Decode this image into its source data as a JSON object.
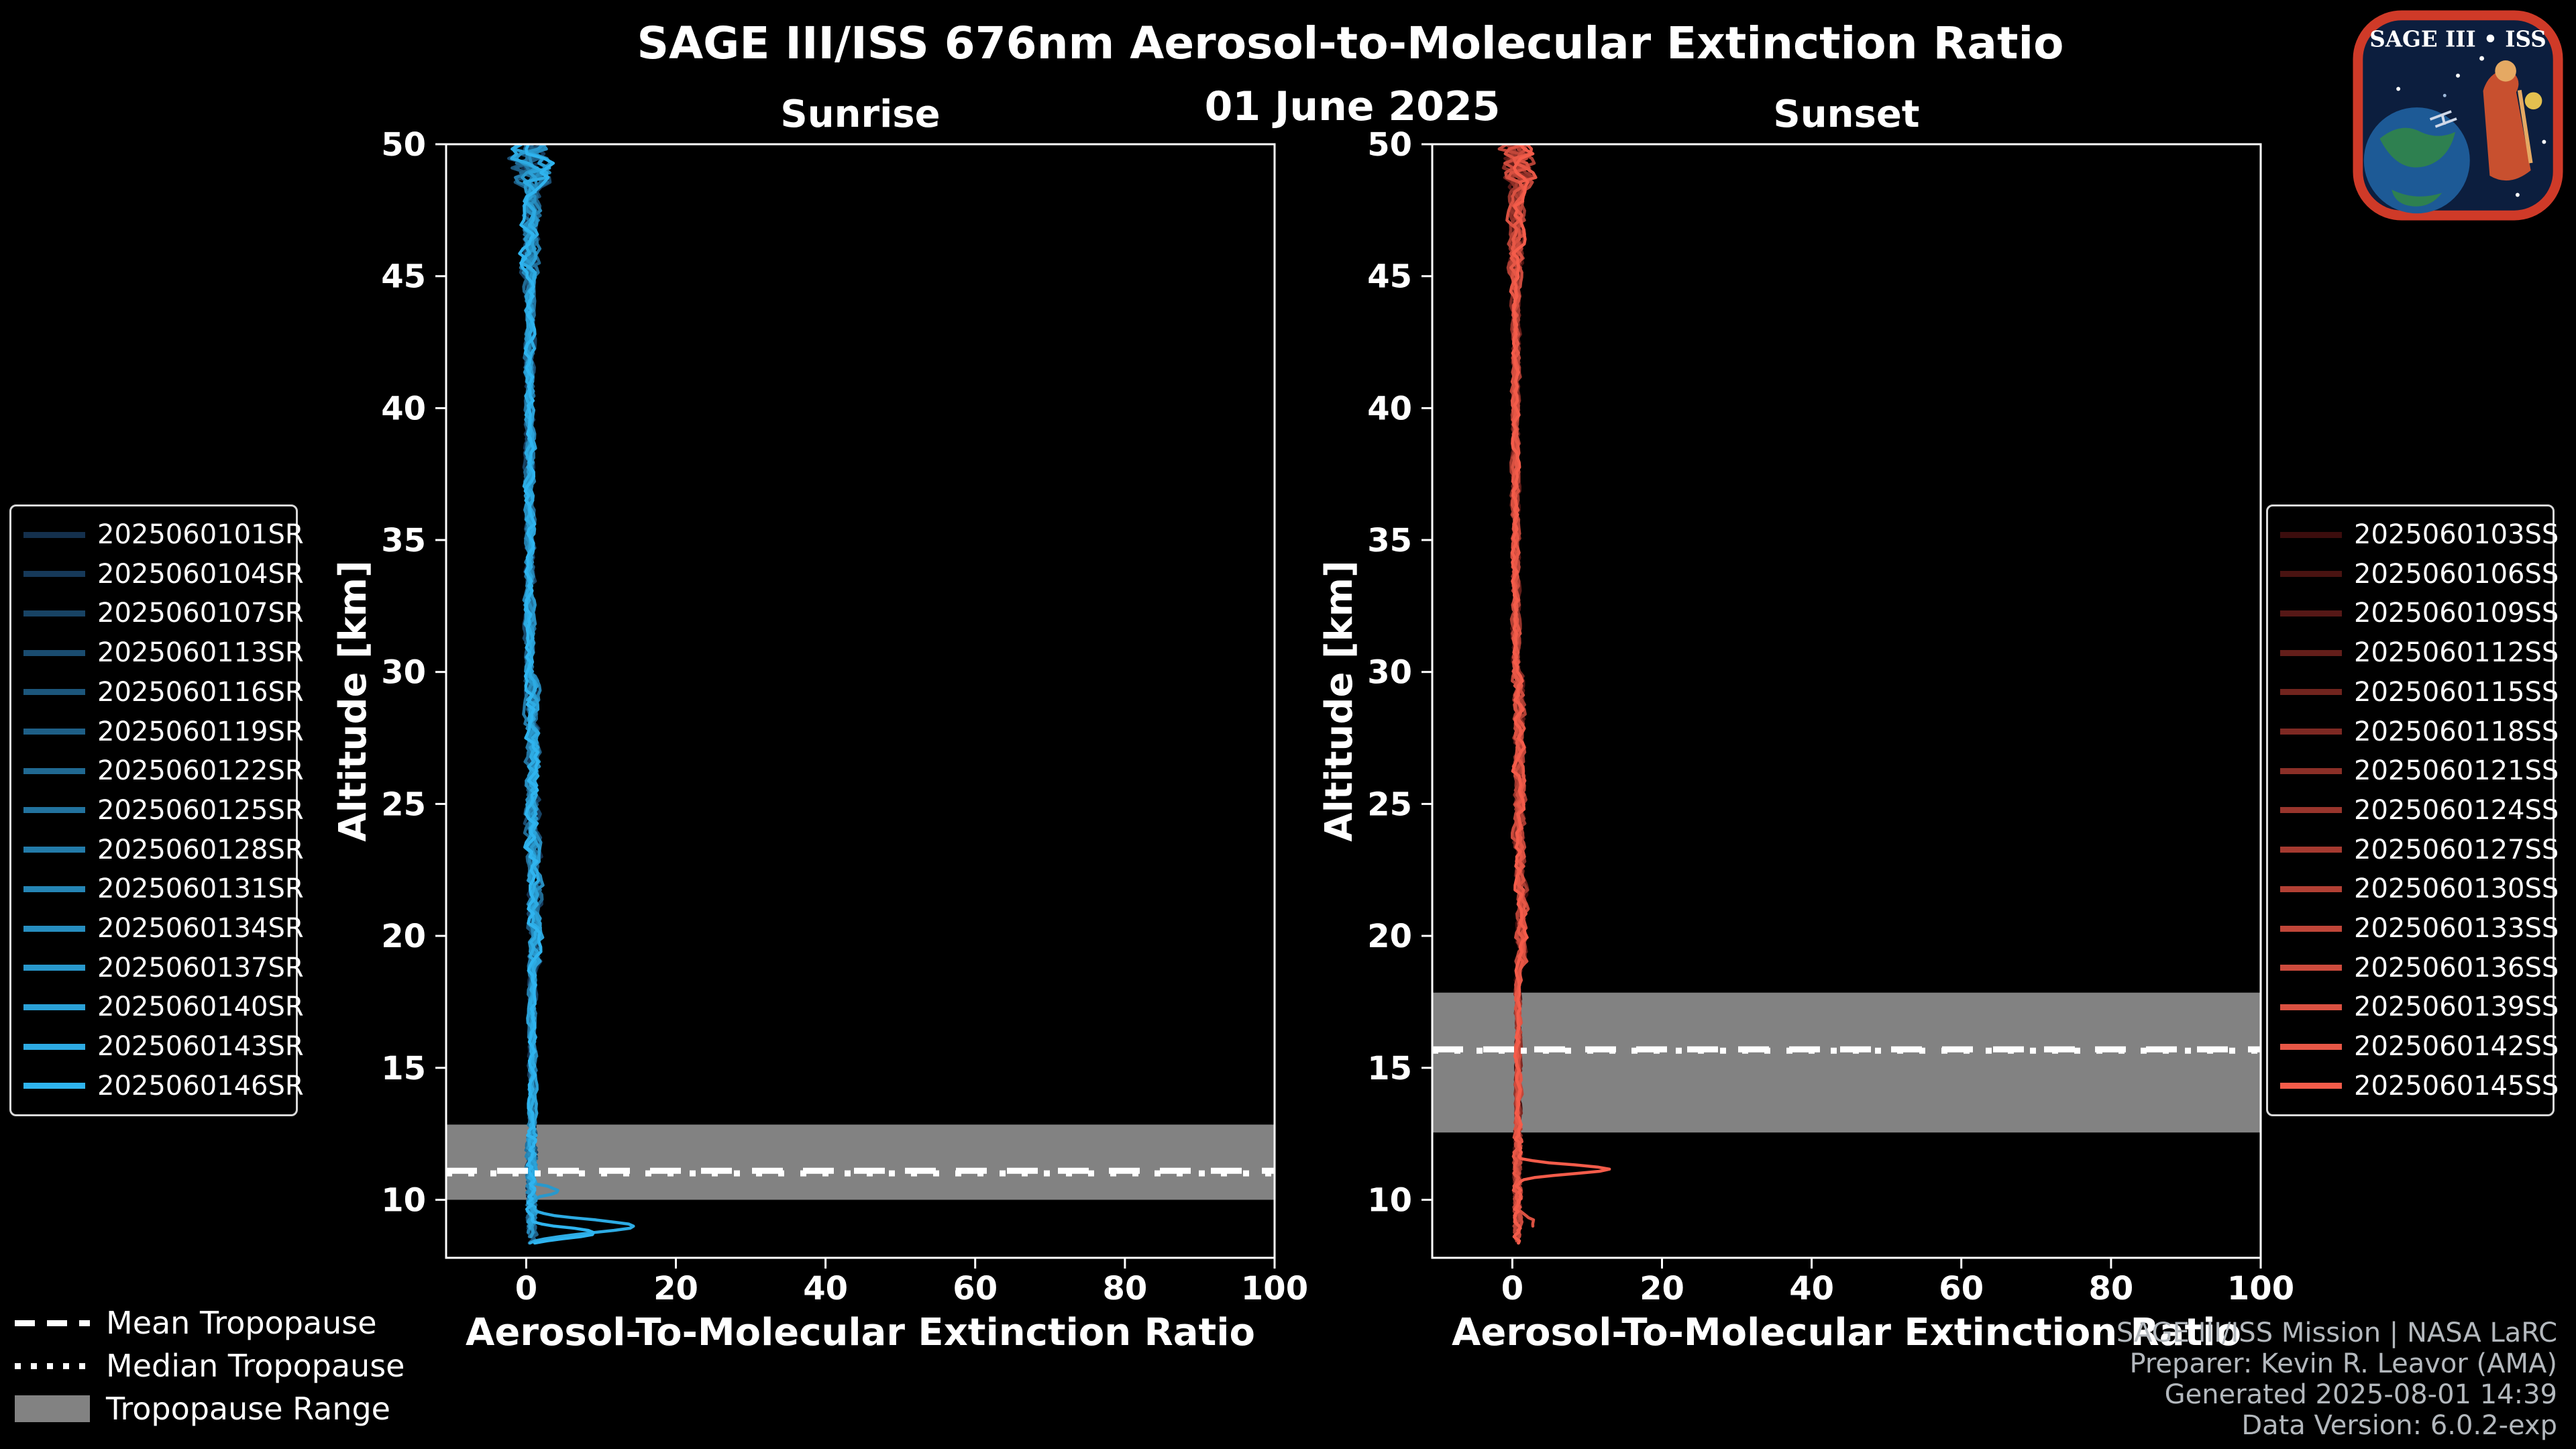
{
  "background": "#000000",
  "header": {
    "title": "SAGE III/ISS 676nm Aerosol-to-Molecular Extinction Ratio",
    "date": "01 June 2025"
  },
  "logo": {
    "title": "SAGE III • ISS"
  },
  "tropopause_legend": {
    "mean": "Mean Tropopause",
    "median": "Median Tropopause",
    "range": "Tropopause Range"
  },
  "credits": {
    "line1": "SAGE III/ISS Mission | NASA LaRC",
    "line2": "Preparer: Kevin R. Leavor (AMA)",
    "line3": "Generated 2025-08-01 14:39",
    "line4": "Data Version: 6.0.2-exp"
  },
  "chart_data": [
    {
      "type": "line",
      "title": "Sunrise",
      "xlabel": "Aerosol-To-Molecular Extinction Ratio",
      "ylabel": "Altitude [km]",
      "xlim": [
        -10.7,
        100
      ],
      "ylim": [
        7.8,
        50
      ],
      "x_ticks": [
        0,
        20,
        40,
        60,
        80,
        100
      ],
      "y_ticks": [
        10,
        15,
        20,
        25,
        30,
        35,
        40,
        45,
        50
      ],
      "grid": false,
      "legend_position": "left-outside",
      "line_color_ramp": [
        "#14304D",
        "#2FB4EF"
      ],
      "tropopause": {
        "mean_km": 11.1,
        "median_km": 11.0,
        "range_km": [
          10.0,
          12.85
        ]
      },
      "mean_profile": {
        "altitude_km": [
          8.5,
          9,
          10,
          11,
          12,
          15,
          20,
          22,
          25,
          30,
          35,
          40,
          45,
          50
        ],
        "ratio": [
          2.5,
          3.5,
          1.0,
          0.8,
          0.8,
          0.9,
          1.2,
          1.4,
          1.1,
          0.6,
          0.45,
          0.45,
          0.5,
          0.7
        ]
      },
      "note": "Fifteen sunrise profiles cluster near ratio 0-2 at all altitudes; one bright profile spikes to about 15 near 9 km and profiles fan out slightly near 50 km.",
      "series": [
        {
          "label": "2025060101SR",
          "color": "#14304D"
        },
        {
          "label": "2025060104SR",
          "color": "#163959"
        },
        {
          "label": "2025060107SR",
          "color": "#184364"
        },
        {
          "label": "2025060113SR",
          "color": "#1A4C70"
        },
        {
          "label": "2025060116SR",
          "color": "#1C567B"
        },
        {
          "label": "2025060119SR",
          "color": "#1E5F87"
        },
        {
          "label": "2025060122SR",
          "color": "#206992"
        },
        {
          "label": "2025060125SR",
          "color": "#22729E"
        },
        {
          "label": "2025060128SR",
          "color": "#237BA9"
        },
        {
          "label": "2025060131SR",
          "color": "#2585B5"
        },
        {
          "label": "2025060134SR",
          "color": "#278EC0"
        },
        {
          "label": "2025060137SR",
          "color": "#2998CC"
        },
        {
          "label": "2025060140SR",
          "color": "#2BA1D7"
        },
        {
          "label": "2025060143SR",
          "color": "#2DABE3"
        },
        {
          "label": "2025060146SR",
          "color": "#2FB4EF"
        }
      ]
    },
    {
      "type": "line",
      "title": "Sunset",
      "xlabel": "Aerosol-To-Molecular Extinction Ratio",
      "ylabel": "Altitude [km]",
      "xlim": [
        -10.7,
        100
      ],
      "ylim": [
        7.8,
        50
      ],
      "x_ticks": [
        0,
        20,
        40,
        60,
        80,
        100
      ],
      "y_ticks": [
        10,
        15,
        20,
        25,
        30,
        35,
        40,
        45,
        50
      ],
      "grid": false,
      "legend_position": "right-outside",
      "line_color_ramp": [
        "#3C0D0D",
        "#F45C4A"
      ],
      "tropopause": {
        "mean_km": 15.7,
        "median_km": 15.65,
        "range_km": [
          12.55,
          17.85
        ]
      },
      "mean_profile": {
        "altitude_km": [
          8.5,
          9,
          10,
          11,
          11.2,
          12,
          15,
          20,
          25,
          30,
          35,
          40,
          45,
          50
        ],
        "ratio": [
          0.5,
          0.5,
          0.6,
          1.0,
          2.0,
          0.8,
          0.8,
          0.9,
          1.0,
          0.6,
          0.45,
          0.45,
          0.5,
          0.7
        ]
      },
      "note": "Fifteen sunset profiles cluster near ratio 0-2 at all altitudes; one bright profile spikes to about 13 near 11 km.",
      "series": [
        {
          "label": "2025060103SS",
          "color": "#3C0D0D"
        },
        {
          "label": "2025060106SS",
          "color": "#491311"
        },
        {
          "label": "2025060109SS",
          "color": "#561816"
        },
        {
          "label": "2025060112SS",
          "color": "#631E1A"
        },
        {
          "label": "2025060115SS",
          "color": "#71241E"
        },
        {
          "label": "2025060118SS",
          "color": "#7E2923"
        },
        {
          "label": "2025060121SS",
          "color": "#8B2F27"
        },
        {
          "label": "2025060124SS",
          "color": "#98352C"
        },
        {
          "label": "2025060127SS",
          "color": "#A53A30"
        },
        {
          "label": "2025060130SS",
          "color": "#B24034"
        },
        {
          "label": "2025060133SS",
          "color": "#C04639"
        },
        {
          "label": "2025060136SS",
          "color": "#CD4B3D"
        },
        {
          "label": "2025060139SS",
          "color": "#DA5141"
        },
        {
          "label": "2025060142SS",
          "color": "#E75746"
        },
        {
          "label": "2025060145SS",
          "color": "#F45C4A"
        }
      ]
    }
  ]
}
